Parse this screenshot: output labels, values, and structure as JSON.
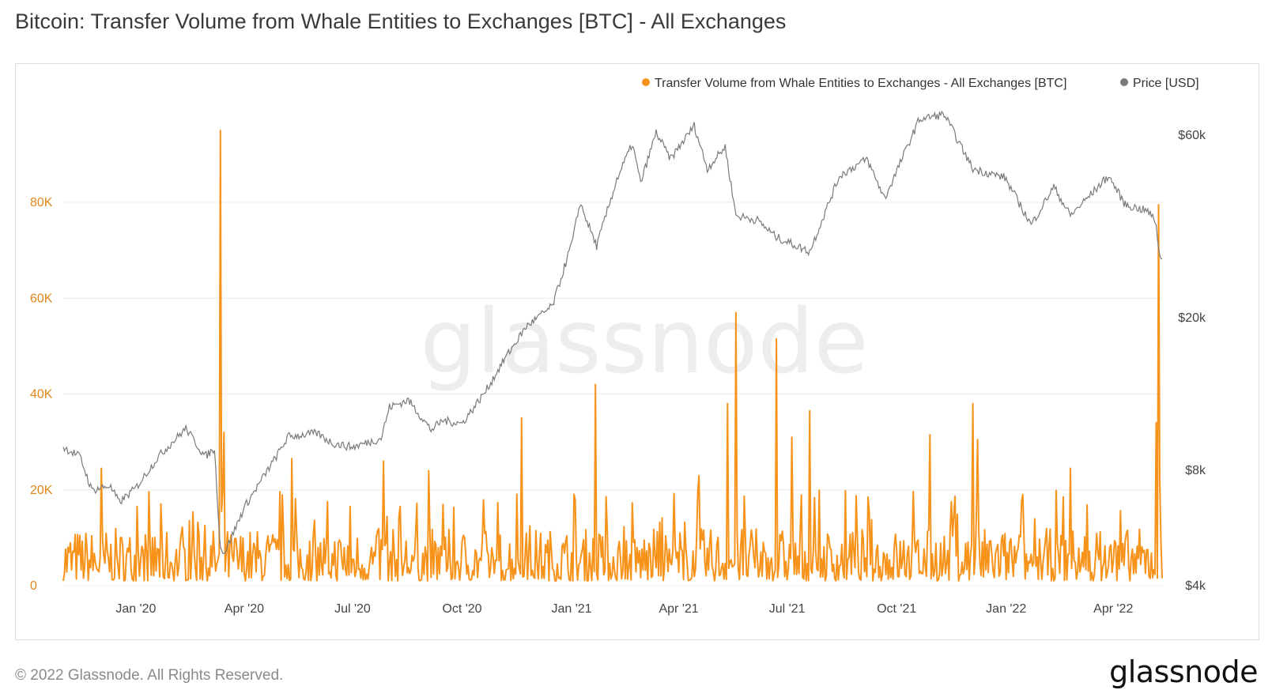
{
  "page": {
    "title": "Bitcoin: Transfer Volume from Whale Entities to Exchanges [BTC] - All Exchanges",
    "copyright": "© 2022 Glassnode. All Rights Reserved.",
    "logo": "glassnode",
    "watermark": "glassnode"
  },
  "chart_data": {
    "type": "line",
    "title": "Bitcoin: Transfer Volume from Whale Entities to Exchanges [BTC] - All Exchanges",
    "legend_position": "top-right",
    "grid": true,
    "x_range": [
      "2019-11-01",
      "2022-05-12"
    ],
    "x_tick_labels": [
      {
        "date": "2020-01-01",
        "label": "Jan '20"
      },
      {
        "date": "2020-04-01",
        "label": "Apr '20"
      },
      {
        "date": "2020-07-01",
        "label": "Jul '20"
      },
      {
        "date": "2020-10-01",
        "label": "Oct '20"
      },
      {
        "date": "2021-01-01",
        "label": "Jan '21"
      },
      {
        "date": "2021-04-01",
        "label": "Apr '21"
      },
      {
        "date": "2021-07-01",
        "label": "Jul '21"
      },
      {
        "date": "2021-10-01",
        "label": "Oct '21"
      },
      {
        "date": "2022-01-01",
        "label": "Jan '22"
      },
      {
        "date": "2022-04-01",
        "label": "Apr '22"
      }
    ],
    "y_left": {
      "label": "",
      "scale": "linear",
      "range": [
        0,
        96000
      ],
      "ticks": [
        {
          "value": 0,
          "label": "0"
        },
        {
          "value": 20000,
          "label": "20K"
        },
        {
          "value": 40000,
          "label": "40K"
        },
        {
          "value": 60000,
          "label": "60K"
        },
        {
          "value": 80000,
          "label": "80K"
        }
      ]
    },
    "y_right": {
      "label": "",
      "scale": "log",
      "range": [
        4000,
        60000
      ],
      "ticks": [
        {
          "value": 4000,
          "label": "$4k"
        },
        {
          "value": 8000,
          "label": "$8k"
        },
        {
          "value": 20000,
          "label": "$20k"
        },
        {
          "value": 60000,
          "label": "$60k"
        }
      ]
    },
    "series": [
      {
        "name": "Transfer Volume from Whale Entities to Exchanges - All Exchanges [BTC]",
        "axis": "left",
        "color": "#f7931a",
        "baseline_range": [
          1000,
          12000
        ],
        "spikes": [
          {
            "date": "2019-12-03",
            "value": 24500
          },
          {
            "date": "2020-03-12",
            "value": 95000
          },
          {
            "date": "2020-03-15",
            "value": 32000
          },
          {
            "date": "2020-05-11",
            "value": 26500
          },
          {
            "date": "2020-07-27",
            "value": 26000
          },
          {
            "date": "2020-09-03",
            "value": 24000
          },
          {
            "date": "2020-11-20",
            "value": 35000
          },
          {
            "date": "2021-01-21",
            "value": 42000
          },
          {
            "date": "2021-04-18",
            "value": 23000
          },
          {
            "date": "2021-05-12",
            "value": 38000
          },
          {
            "date": "2021-05-19",
            "value": 57000
          },
          {
            "date": "2021-06-22",
            "value": 51500
          },
          {
            "date": "2021-07-20",
            "value": 36500
          },
          {
            "date": "2021-07-05",
            "value": 31000
          },
          {
            "date": "2021-10-29",
            "value": 31500
          },
          {
            "date": "2021-12-04",
            "value": 38000
          },
          {
            "date": "2021-12-08",
            "value": 30500
          },
          {
            "date": "2022-02-24",
            "value": 24500
          },
          {
            "date": "2022-05-07",
            "value": 34000
          },
          {
            "date": "2022-05-09",
            "value": 79500
          },
          {
            "date": "2022-05-10",
            "value": 22000
          }
        ]
      },
      {
        "name": "Price [USD]",
        "axis": "right",
        "color": "#7a7a7a",
        "points": [
          [
            "2019-11-01",
            9200
          ],
          [
            "2019-11-15",
            8700
          ],
          [
            "2019-11-25",
            7100
          ],
          [
            "2019-12-10",
            7300
          ],
          [
            "2019-12-18",
            6600
          ],
          [
            "2020-01-01",
            7200
          ],
          [
            "2020-01-20",
            8700
          ],
          [
            "2020-02-12",
            10300
          ],
          [
            "2020-02-28",
            8700
          ],
          [
            "2020-03-07",
            9100
          ],
          [
            "2020-03-12",
            5000
          ],
          [
            "2020-03-16",
            4900
          ],
          [
            "2020-04-01",
            6400
          ],
          [
            "2020-04-29",
            8800
          ],
          [
            "2020-05-08",
            9800
          ],
          [
            "2020-06-01",
            10000
          ],
          [
            "2020-06-15",
            9400
          ],
          [
            "2020-07-01",
            9200
          ],
          [
            "2020-07-25",
            9700
          ],
          [
            "2020-08-01",
            11700
          ],
          [
            "2020-08-17",
            12200
          ],
          [
            "2020-09-05",
            10200
          ],
          [
            "2020-09-15",
            10800
          ],
          [
            "2020-10-01",
            10600
          ],
          [
            "2020-10-21",
            12900
          ],
          [
            "2020-11-05",
            15500
          ],
          [
            "2020-11-24",
            19000
          ],
          [
            "2020-12-16",
            21500
          ],
          [
            "2021-01-02",
            32000
          ],
          [
            "2021-01-08",
            40000
          ],
          [
            "2021-01-22",
            30800
          ],
          [
            "2021-02-08",
            46000
          ],
          [
            "2021-02-21",
            57000
          ],
          [
            "2021-02-28",
            45000
          ],
          [
            "2021-03-13",
            61000
          ],
          [
            "2021-03-25",
            52000
          ],
          [
            "2021-04-14",
            63500
          ],
          [
            "2021-04-25",
            49000
          ],
          [
            "2021-05-10",
            56000
          ],
          [
            "2021-05-19",
            37000
          ],
          [
            "2021-06-06",
            36000
          ],
          [
            "2021-06-22",
            32500
          ],
          [
            "2021-07-20",
            29800
          ],
          [
            "2021-08-14",
            47000
          ],
          [
            "2021-09-06",
            52000
          ],
          [
            "2021-09-21",
            41000
          ],
          [
            "2021-10-20",
            66000
          ],
          [
            "2021-11-10",
            68000
          ],
          [
            "2021-12-04",
            49000
          ],
          [
            "2021-12-31",
            46500
          ],
          [
            "2022-01-22",
            35000
          ],
          [
            "2022-02-10",
            44000
          ],
          [
            "2022-02-24",
            37000
          ],
          [
            "2022-03-28",
            47000
          ],
          [
            "2022-04-11",
            39500
          ],
          [
            "2022-04-30",
            38000
          ],
          [
            "2022-05-07",
            35500
          ],
          [
            "2022-05-09",
            30000
          ],
          [
            "2022-05-12",
            28500
          ]
        ]
      }
    ]
  }
}
